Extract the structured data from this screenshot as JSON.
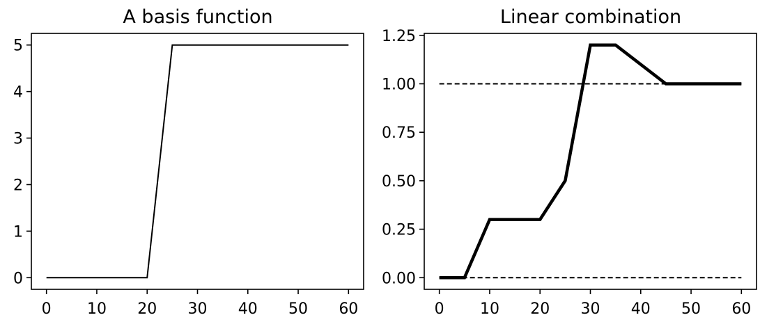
{
  "chart_data": [
    {
      "type": "line",
      "title": "A basis function",
      "xlim": [
        -3,
        63
      ],
      "ylim": [
        -0.25,
        5.25
      ],
      "xticks": [
        "0",
        "10",
        "20",
        "30",
        "40",
        "50",
        "60"
      ],
      "yticks": [
        "0",
        "1",
        "2",
        "3",
        "4",
        "5"
      ],
      "grid": false,
      "series": [
        {
          "x": [
            0,
            20,
            25,
            60
          ],
          "y": [
            0,
            0,
            5,
            5
          ],
          "color": "#000000",
          "style": "solid",
          "weight": "thin"
        }
      ]
    },
    {
      "type": "line",
      "title": "Linear combination",
      "xlim": [
        -3,
        63
      ],
      "ylim": [
        -0.06,
        1.26
      ],
      "xticks": [
        "0",
        "10",
        "20",
        "30",
        "40",
        "50",
        "60"
      ],
      "yticks": [
        "0.00",
        "0.25",
        "0.50",
        "0.75",
        "1.00",
        "1.25"
      ],
      "grid": false,
      "series": [
        {
          "x": [
            0,
            5,
            10,
            20,
            25,
            30,
            35,
            45,
            60
          ],
          "y": [
            0,
            0,
            0.3,
            0.3,
            0.5,
            1.2,
            1.2,
            1.0,
            1.0
          ],
          "color": "#000000",
          "style": "solid",
          "weight": "thick"
        },
        {
          "x": [
            0,
            60
          ],
          "y": [
            1,
            1
          ],
          "color": "#000000",
          "style": "dashed",
          "weight": "thin"
        },
        {
          "x": [
            0,
            60
          ],
          "y": [
            0,
            0
          ],
          "color": "#000000",
          "style": "dashed",
          "weight": "thin"
        }
      ]
    }
  ]
}
